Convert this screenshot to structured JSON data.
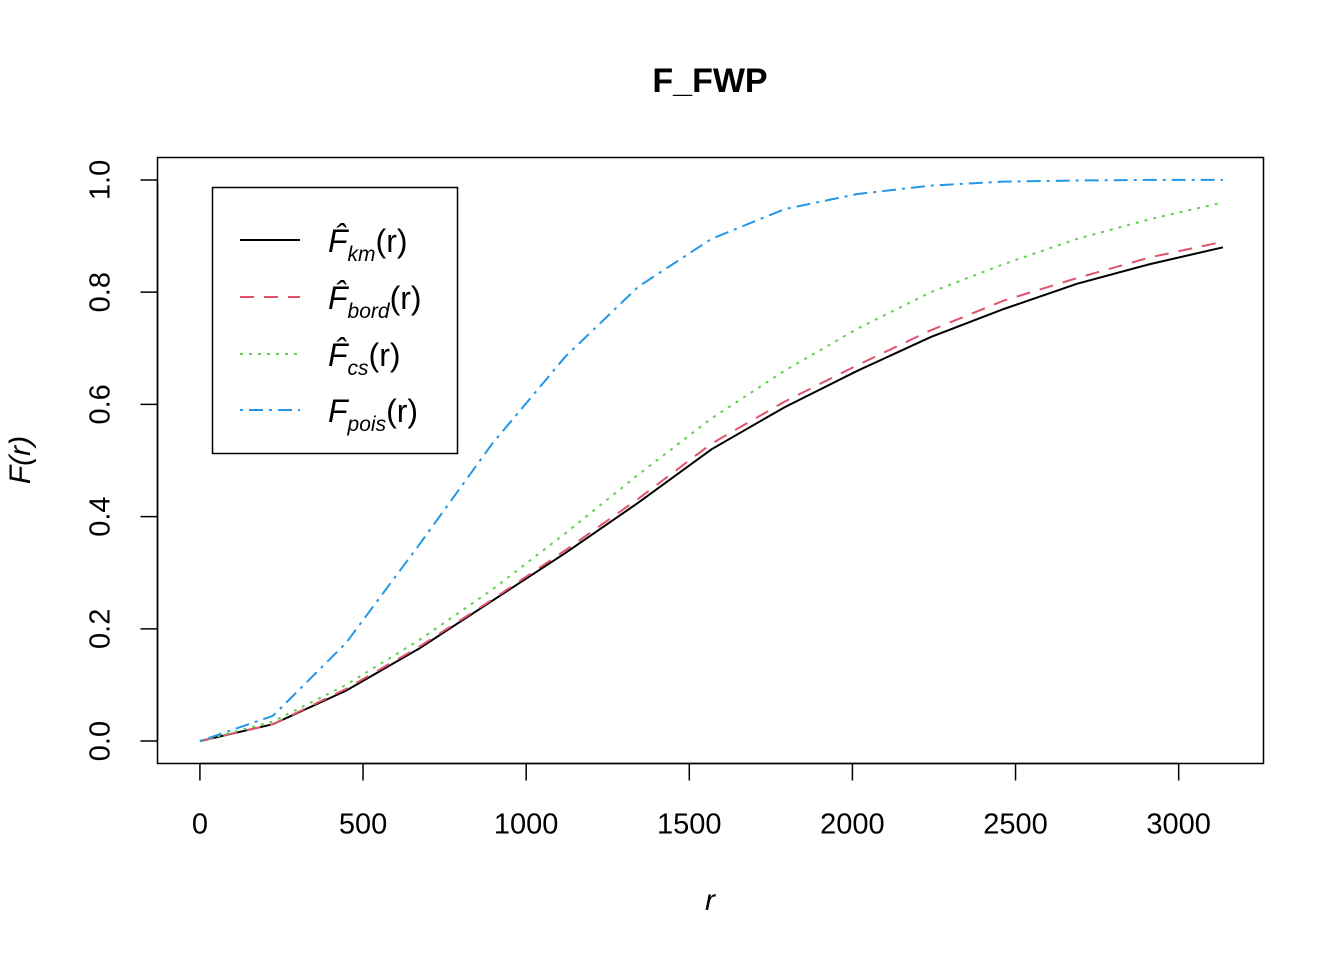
{
  "chart_data": {
    "type": "line",
    "title": "F_FWP",
    "xlabel": "r",
    "ylabel": "F(r)",
    "xlim": [
      -130,
      3260
    ],
    "ylim": [
      -0.04,
      1.04
    ],
    "x_ticks": [
      "0",
      "500",
      "1000",
      "1500",
      "2000",
      "2500",
      "3000"
    ],
    "y_ticks": [
      "0.0",
      "0.2",
      "0.4",
      "0.6",
      "0.8",
      "1.0"
    ],
    "grid": false,
    "legend_position": "top-left",
    "x": [
      0,
      224,
      448,
      672,
      896,
      1120,
      1344,
      1568,
      1792,
      2016,
      2240,
      2464,
      2688,
      2912,
      3136
    ],
    "series": [
      {
        "name": "F̂km(r)",
        "legend_main": "F̂",
        "legend_sub": "km",
        "legend_arg": "(r)",
        "color": "#000000",
        "dash": "",
        "values": [
          0,
          0.03,
          0.09,
          0.165,
          0.25,
          0.335,
          0.425,
          0.52,
          0.595,
          0.66,
          0.72,
          0.77,
          0.815,
          0.85,
          0.88
        ]
      },
      {
        "name": "F̂bord(r)",
        "legend_main": "F̂",
        "legend_sub": "bord",
        "legend_arg": "(r)",
        "color": "#DF536B",
        "dash": "14,10",
        "values": [
          0,
          0.03,
          0.093,
          0.168,
          0.252,
          0.34,
          0.432,
          0.53,
          0.605,
          0.67,
          0.732,
          0.785,
          0.825,
          0.862,
          0.89
        ]
      },
      {
        "name": "F̂cs(r)",
        "legend_main": "F̂",
        "legend_sub": "cs",
        "legend_arg": "(r)",
        "color": "#61D04F",
        "dash": "3,6",
        "values": [
          0,
          0.035,
          0.1,
          0.18,
          0.27,
          0.37,
          0.475,
          0.575,
          0.66,
          0.735,
          0.8,
          0.85,
          0.895,
          0.93,
          0.96
        ]
      },
      {
        "name": "Fpois(r)",
        "legend_main": "F",
        "legend_sub": "pois",
        "legend_arg": "(r)",
        "color": "#2297E6",
        "dash": "3,6,14,6",
        "values": [
          0,
          0.045,
          0.175,
          0.35,
          0.53,
          0.685,
          0.81,
          0.895,
          0.948,
          0.975,
          0.99,
          0.997,
          0.999,
          1.0,
          1.0
        ]
      }
    ]
  }
}
